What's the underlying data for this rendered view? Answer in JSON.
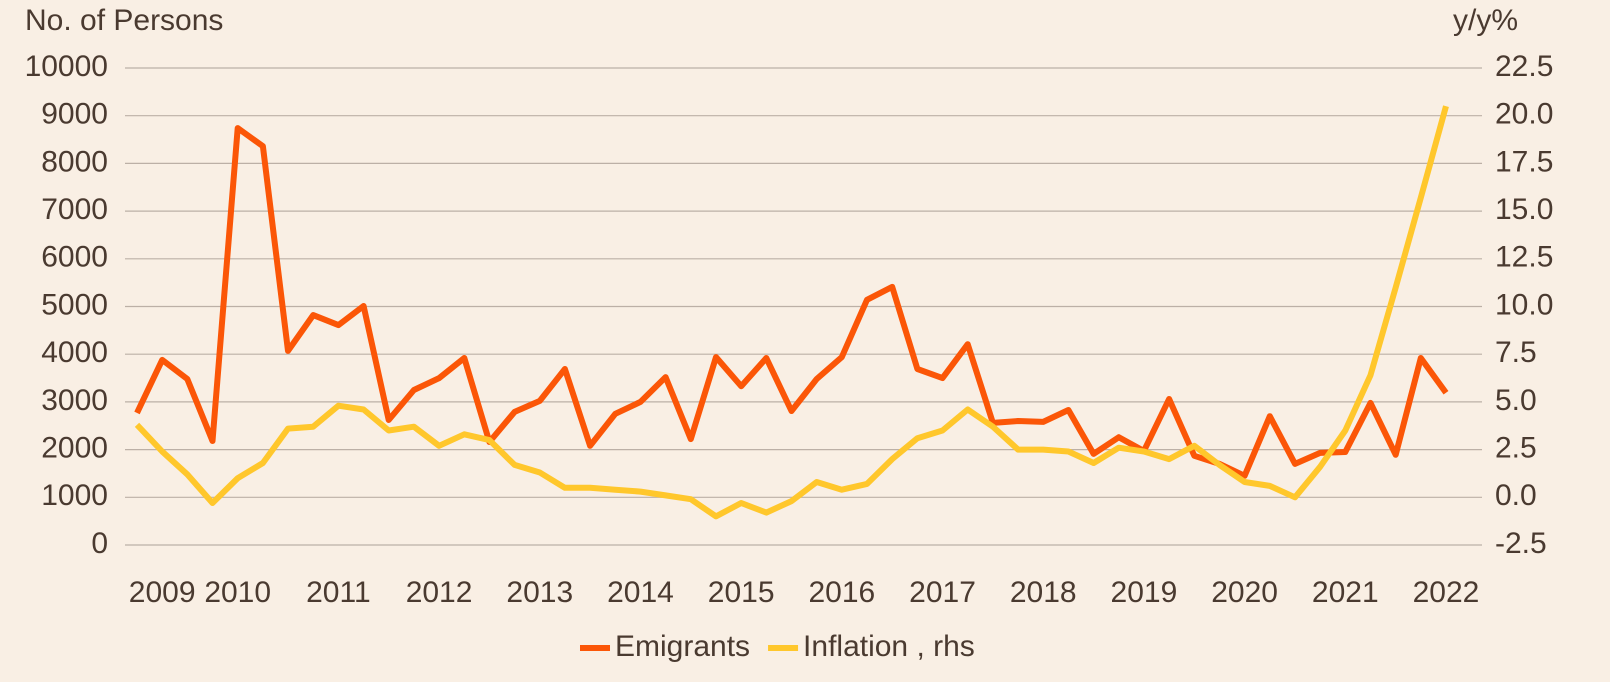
{
  "chart_data": {
    "type": "line",
    "y_label": "No. of Persons",
    "y2_label": "y/y%",
    "categories": [
      null,
      "2009",
      null,
      null,
      "2010",
      null,
      null,
      null,
      "2011",
      null,
      null,
      null,
      "2012",
      null,
      null,
      null,
      "2013",
      null,
      null,
      null,
      "2014",
      null,
      null,
      null,
      "2015",
      null,
      null,
      null,
      "2016",
      null,
      null,
      null,
      "2017",
      null,
      null,
      null,
      "2018",
      null,
      null,
      null,
      "2019",
      null,
      null,
      null,
      "2020",
      null,
      null,
      null,
      "2021",
      null,
      null,
      null,
      "2022"
    ],
    "series": [
      {
        "name": "Emigrants",
        "color": "#fb5607",
        "values": [
          2770,
          3880,
          3480,
          2180,
          8740,
          8360,
          4070,
          4820,
          4610,
          5010,
          2620,
          3250,
          3500,
          3920,
          2160,
          2790,
          3020,
          3690,
          2080,
          2750,
          3000,
          3520,
          2220,
          3940,
          3330,
          3920,
          2810,
          3480,
          3940,
          5140,
          5410,
          3690,
          3500,
          4210,
          2560,
          2600,
          2580,
          2830,
          1910,
          2260,
          1970,
          3060,
          1870,
          1700,
          1450,
          2700,
          1700,
          1930,
          1950,
          2980,
          1890,
          3920,
          3190
        ]
      },
      {
        "name": "Inflation , rhs",
        "color": "#ffc72c",
        "axis": "y2",
        "values": [
          3.8,
          2.4,
          1.2,
          -0.3,
          1.0,
          1.8,
          3.6,
          3.7,
          4.8,
          4.6,
          3.5,
          3.7,
          2.7,
          3.3,
          3.0,
          1.7,
          1.3,
          0.5,
          0.5,
          0.4,
          0.3,
          0.1,
          -0.1,
          -1.0,
          -0.3,
          -0.8,
          -0.2,
          0.8,
          0.4,
          0.7,
          2.0,
          3.1,
          3.5,
          4.6,
          3.7,
          2.5,
          2.5,
          2.4,
          1.8,
          2.6,
          2.4,
          2.0,
          2.7,
          1.7,
          0.8,
          0.6,
          0.0,
          1.6,
          3.5,
          6.4,
          11.0,
          15.7,
          20.5
        ]
      }
    ],
    "ylim": [
      0,
      10000
    ],
    "yticks": [
      0,
      1000,
      2000,
      3000,
      4000,
      5000,
      6000,
      7000,
      8000,
      9000,
      10000
    ],
    "y2lim": [
      -2.5,
      22.5
    ],
    "y2ticks": [
      -2.5,
      {
        "value": 0,
        "label": "0.0"
      },
      2.5,
      {
        "value": 5,
        "label": "5.0"
      },
      7.5,
      {
        "value": 10,
        "label": "10.0"
      },
      12.5,
      {
        "value": 15,
        "label": "15.0"
      },
      17.5,
      {
        "value": 20,
        "label": "20.0"
      },
      22.5
    ],
    "grid": true,
    "legend": "bottom"
  }
}
